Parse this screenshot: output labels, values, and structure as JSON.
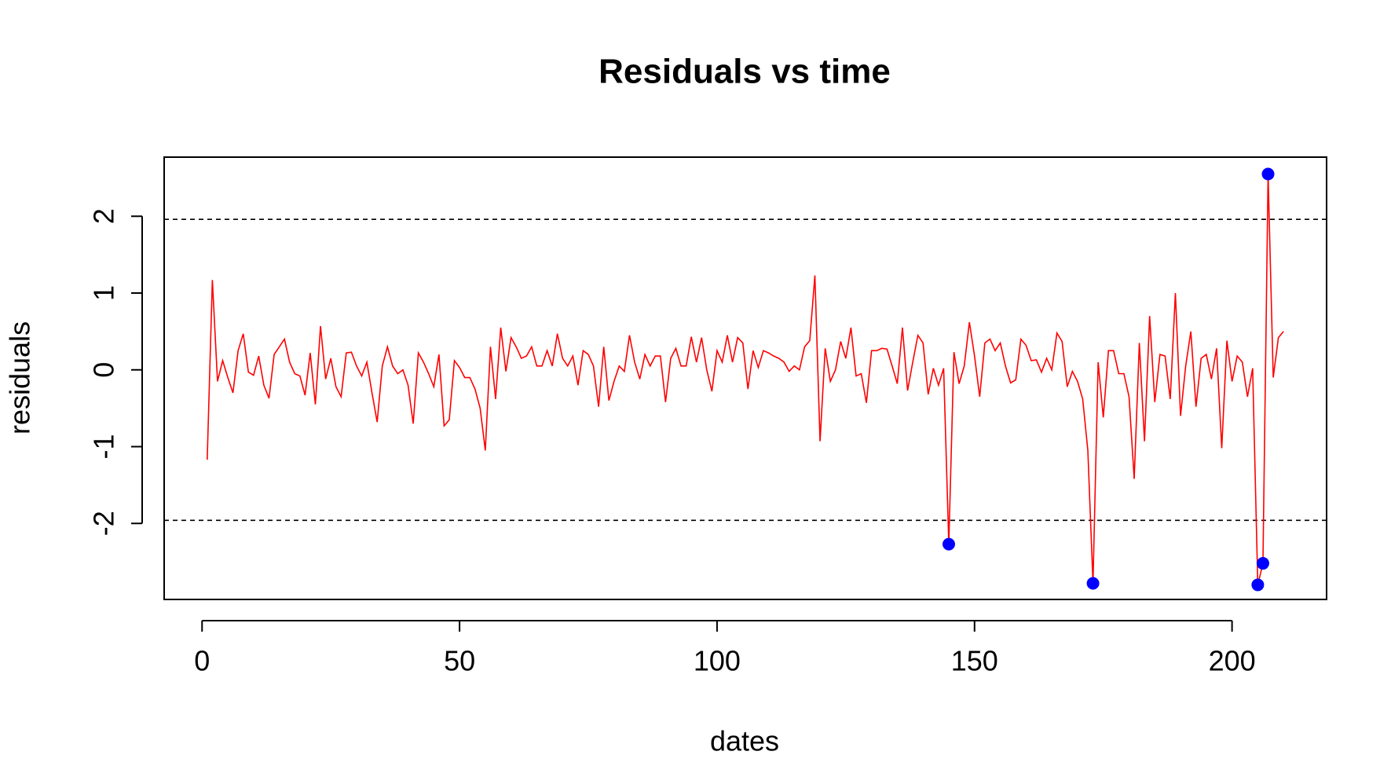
{
  "chart_data": {
    "type": "line",
    "title": "Residuals vs time",
    "x_label": "dates",
    "y_label": "residuals",
    "x": [
      1,
      2,
      3,
      4,
      5,
      6,
      7,
      8,
      9,
      10,
      11,
      12,
      13,
      14,
      15,
      16,
      17,
      18,
      19,
      20,
      21,
      22,
      23,
      24,
      25,
      26,
      27,
      28,
      29,
      30,
      31,
      32,
      33,
      34,
      35,
      36,
      37,
      38,
      39,
      40,
      41,
      42,
      43,
      44,
      45,
      46,
      47,
      48,
      49,
      50,
      51,
      52,
      53,
      54,
      55,
      56,
      57,
      58,
      59,
      60,
      61,
      62,
      63,
      64,
      65,
      66,
      67,
      68,
      69,
      70,
      71,
      72,
      73,
      74,
      75,
      76,
      77,
      78,
      79,
      80,
      81,
      82,
      83,
      84,
      85,
      86,
      87,
      88,
      89,
      90,
      91,
      92,
      93,
      94,
      95,
      96,
      97,
      98,
      99,
      100,
      101,
      102,
      103,
      104,
      105,
      106,
      107,
      108,
      109,
      110,
      111,
      112,
      113,
      114,
      115,
      116,
      117,
      118,
      119,
      120,
      121,
      122,
      123,
      124,
      125,
      126,
      127,
      128,
      129,
      130,
      131,
      132,
      133,
      134,
      135,
      136,
      137,
      138,
      139,
      140,
      141,
      142,
      143,
      144,
      145,
      146,
      147,
      148,
      149,
      150,
      151,
      152,
      153,
      154,
      155,
      156,
      157,
      158,
      159,
      160,
      161,
      162,
      163,
      164,
      165,
      166,
      167,
      168,
      169,
      170,
      171,
      172,
      173,
      174,
      175,
      176,
      177,
      178,
      179,
      180,
      181,
      182,
      183,
      184,
      185,
      186,
      187,
      188,
      189,
      190,
      191,
      192,
      193,
      194,
      195,
      196,
      197,
      198,
      199,
      200,
      201,
      202,
      203,
      204,
      205,
      206,
      207,
      208,
      209,
      210
    ],
    "series": [
      {
        "color": "#ff0000",
        "values": [
          -1.17,
          1.17,
          -0.15,
          0.12,
          -0.1,
          -0.3,
          0.25,
          0.47,
          -0.03,
          -0.07,
          0.18,
          -0.2,
          -0.37,
          0.2,
          0.3,
          0.4,
          0.1,
          -0.05,
          -0.08,
          -0.33,
          0.22,
          -0.45,
          0.57,
          -0.12,
          0.15,
          -0.22,
          -0.35,
          0.22,
          0.23,
          0.05,
          -0.08,
          0.1,
          -0.3,
          -0.68,
          0.05,
          0.3,
          0.05,
          -0.05,
          0.0,
          -0.2,
          -0.7,
          0.22,
          0.1,
          -0.05,
          -0.22,
          0.2,
          -0.73,
          -0.65,
          0.12,
          0.03,
          -0.1,
          -0.1,
          -0.25,
          -0.5,
          -1.05,
          0.3,
          -0.38,
          0.55,
          -0.02,
          0.42,
          0.3,
          0.15,
          0.18,
          0.3,
          0.05,
          0.05,
          0.25,
          0.05,
          0.47,
          0.15,
          0.05,
          0.18,
          -0.2,
          0.25,
          0.2,
          0.05,
          -0.48,
          0.3,
          -0.4,
          -0.15,
          0.05,
          -0.02,
          0.45,
          0.1,
          -0.12,
          0.2,
          0.05,
          0.18,
          0.18,
          -0.42,
          0.15,
          0.28,
          0.05,
          0.05,
          0.43,
          0.1,
          0.42,
          0.0,
          -0.28,
          0.25,
          0.1,
          0.45,
          0.1,
          0.42,
          0.35,
          -0.25,
          0.25,
          0.03,
          0.25,
          0.22,
          0.18,
          0.15,
          0.1,
          -0.02,
          0.05,
          0.0,
          0.3,
          0.38,
          1.23,
          -0.93,
          0.28,
          -0.15,
          0.0,
          0.37,
          0.15,
          0.55,
          -0.08,
          -0.05,
          -0.43,
          0.25,
          0.25,
          0.28,
          0.27,
          0.05,
          -0.18,
          0.55,
          -0.27,
          0.1,
          0.45,
          0.35,
          -0.32,
          0.02,
          -0.2,
          0.02,
          -2.27,
          0.23,
          -0.18,
          0.05,
          0.62,
          0.18,
          -0.35,
          0.35,
          0.4,
          0.25,
          0.35,
          0.05,
          -0.17,
          -0.13,
          0.4,
          0.32,
          0.12,
          0.13,
          -0.03,
          0.15,
          0.0,
          0.48,
          0.37,
          -0.22,
          -0.02,
          -0.15,
          -0.38,
          -1.05,
          -2.78,
          0.1,
          -0.62,
          0.25,
          0.25,
          -0.05,
          -0.05,
          -0.35,
          -1.42,
          0.35,
          -0.93,
          0.7,
          -0.42,
          0.2,
          0.18,
          -0.38,
          1.0,
          -0.6,
          0.05,
          0.5,
          -0.48,
          0.15,
          0.2,
          -0.12,
          0.28,
          -1.02,
          0.38,
          -0.15,
          0.18,
          0.1,
          -0.35,
          0.02,
          -2.8,
          -2.52,
          2.55,
          -0.1,
          0.42,
          0.5
        ]
      },
      {
        "color": "#0000ff",
        "type": "scatter",
        "x": [
          145,
          173,
          205,
          206,
          207
        ],
        "values": [
          -2.27,
          -2.78,
          -2.8,
          -2.52,
          2.55
        ]
      }
    ],
    "hlines": [
      -1.96,
      1.96
    ],
    "xlim": [
      -7.36,
      218.36
    ],
    "ylim": [
      -2.99,
      2.77
    ],
    "xticks": [
      0,
      50,
      100,
      150,
      200
    ],
    "yticks": [
      -2,
      -1,
      0,
      1,
      2
    ]
  }
}
